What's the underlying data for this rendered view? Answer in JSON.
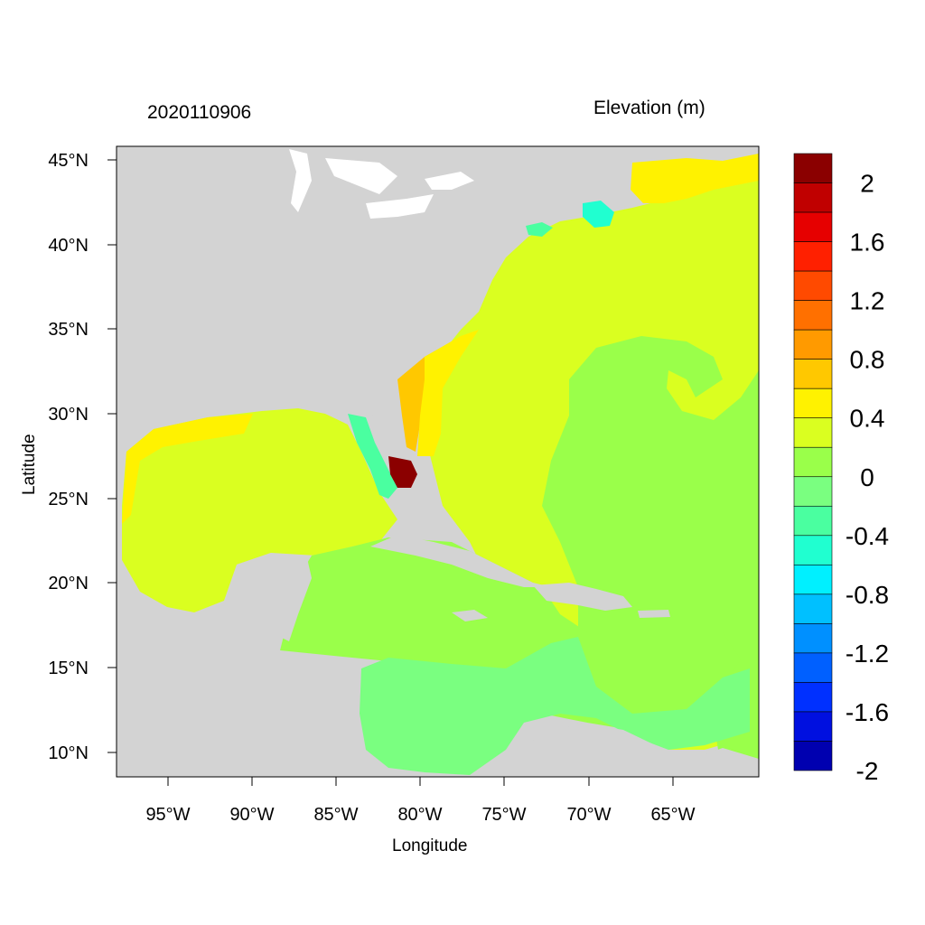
{
  "header": {
    "datetime": "2020110906",
    "variable": "Elevation (m)"
  },
  "axes": {
    "xlabel": "Longitude",
    "ylabel": "Latitude",
    "xticks": [
      "95°W",
      "90°W",
      "85°W",
      "80°W",
      "75°W",
      "70°W",
      "65°W"
    ],
    "yticks": [
      "45°N",
      "40°N",
      "35°N",
      "30°N",
      "25°N",
      "20°N",
      "15°N",
      "10°N"
    ]
  },
  "colorbar": {
    "labels": [
      "2",
      "1.6",
      "1.2",
      "0.8",
      "0.4",
      "0",
      "-0.4",
      "-0.8",
      "-1.2",
      "-1.6",
      "-2"
    ],
    "colors": [
      "#8b0000",
      "#c00000",
      "#e60000",
      "#ff2000",
      "#ff4a00",
      "#ff7000",
      "#ff9a00",
      "#ffc800",
      "#fff200",
      "#daff20",
      "#9aff4a",
      "#7aff80",
      "#4affa0",
      "#20ffd0",
      "#00f0ff",
      "#00c0ff",
      "#0090ff",
      "#0060ff",
      "#0030ff",
      "#0010e0",
      "#0000b0"
    ]
  },
  "map_colors": {
    "land": "#d3d3d3",
    "ocean_main": "#daff20",
    "ocean_zero": "#9aff4a",
    "ocean_low": "#7aff80",
    "coastal_high": "#fff200",
    "surge": "#ffc800",
    "extreme": "#8b0000",
    "negative": "#20ffd0"
  }
}
